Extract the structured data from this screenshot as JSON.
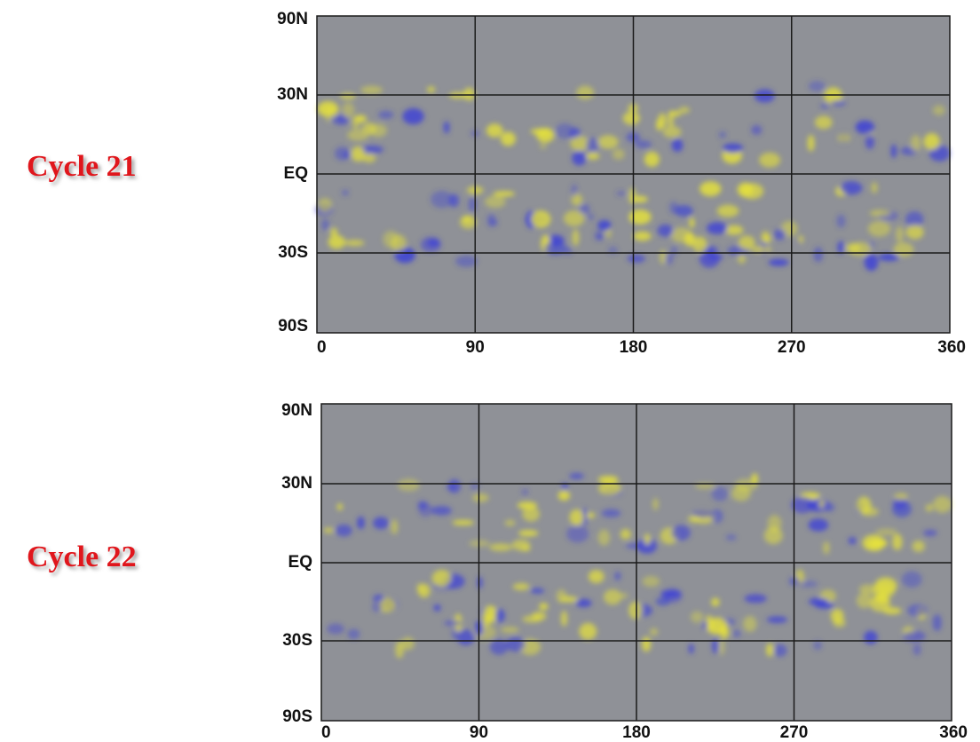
{
  "panels": [
    {
      "label": "Cycle 21",
      "y_labels": [
        "90N",
        "30N",
        "EQ",
        "30S",
        "90S"
      ],
      "x_labels": [
        "0",
        "90",
        "180",
        "270",
        "360"
      ]
    },
    {
      "label": "Cycle 22",
      "y_labels": [
        "90N",
        "30N",
        "EQ",
        "30S",
        "90S"
      ],
      "x_labels": [
        "0",
        "90",
        "180",
        "270",
        "360"
      ]
    }
  ]
}
